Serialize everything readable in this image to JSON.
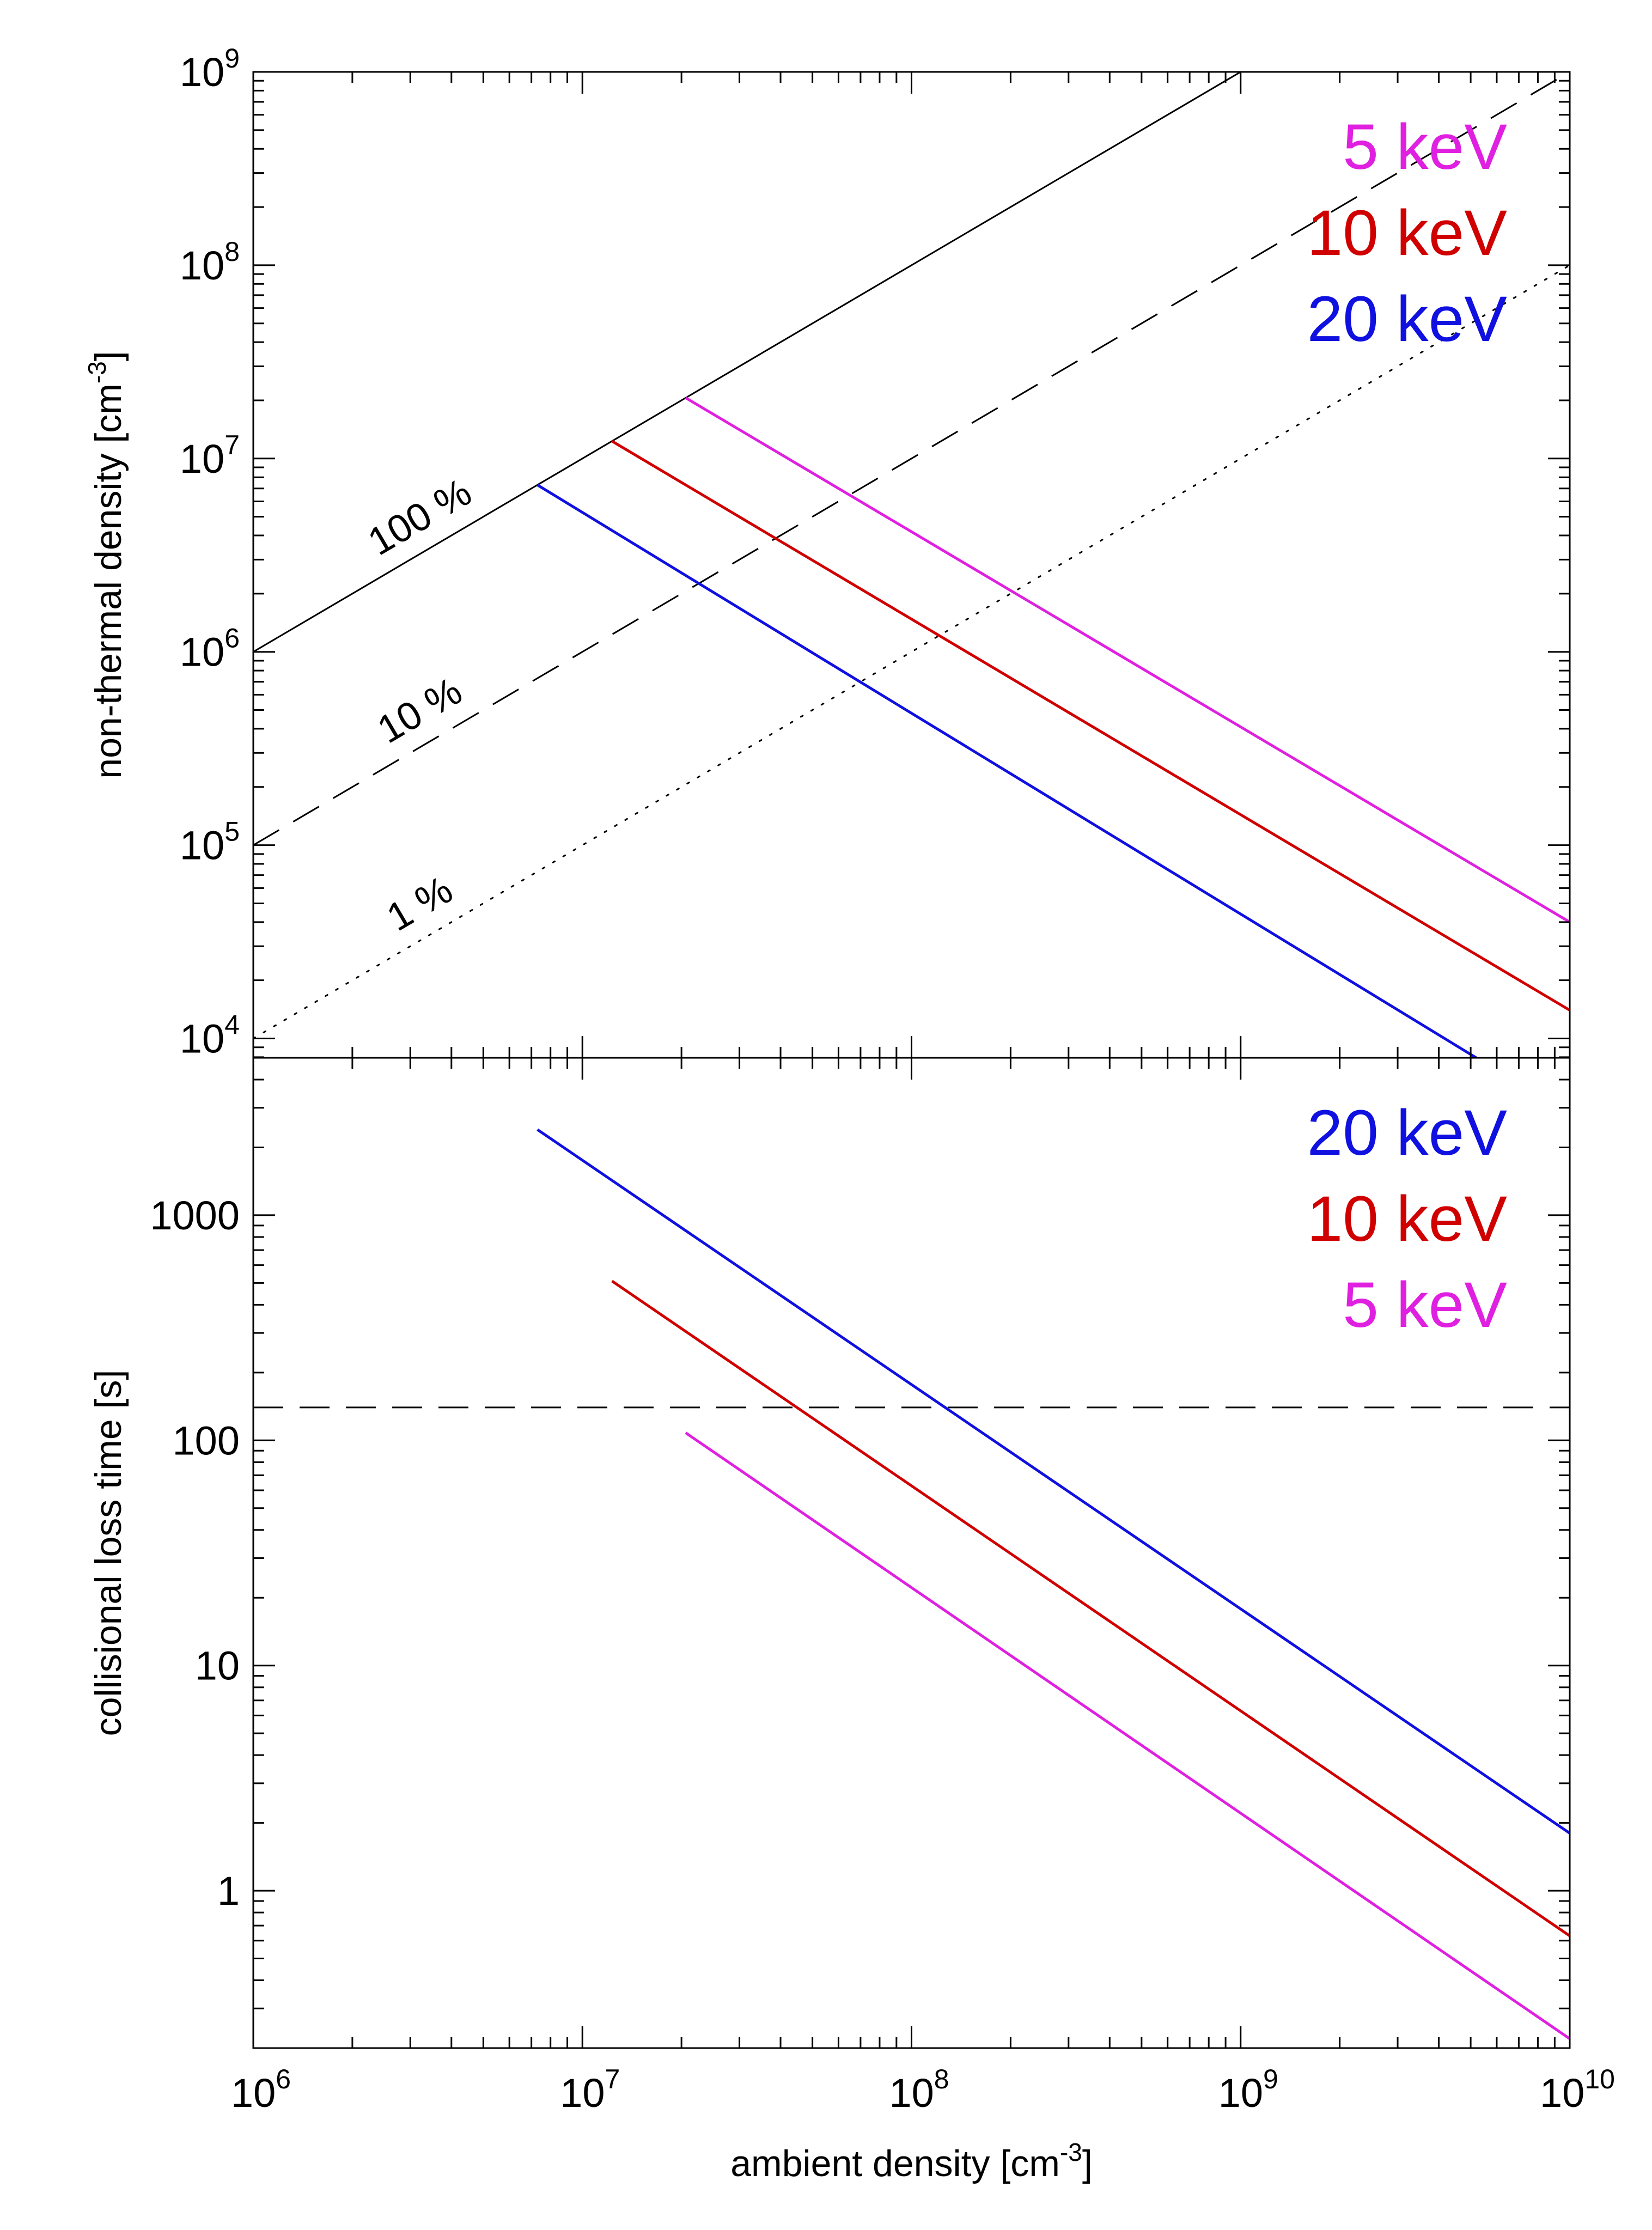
{
  "chart_data": [
    {
      "type": "line",
      "panel": "top",
      "ylabel": "non-thermal density [cm",
      "ylabel_sup": "-3",
      "ylabel_close": "]",
      "xscale": "log",
      "yscale": "log",
      "xlim": [
        1000000,
        10000000000
      ],
      "ylim": [
        7943,
        1000000000
      ],
      "grid": false,
      "yticks": [
        {
          "value": 10000,
          "base": "10",
          "exp": "4"
        },
        {
          "value": 100000,
          "base": "10",
          "exp": "5"
        },
        {
          "value": 1000000,
          "base": "10",
          "exp": "6"
        },
        {
          "value": 10000000,
          "base": "10",
          "exp": "7"
        },
        {
          "value": 100000000,
          "base": "10",
          "exp": "8"
        },
        {
          "value": 1000000000,
          "base": "10",
          "exp": "9"
        }
      ],
      "reference_lines": [
        {
          "label": "100 %",
          "fraction": 1.0,
          "style": "solid",
          "color": "#000000",
          "label_at": 1500000
        },
        {
          "label": "10 %",
          "fraction": 0.1,
          "style": "dashed",
          "color": "#000000",
          "label_at": 1500000
        },
        {
          "label": "1 %",
          "fraction": 0.01,
          "style": "dotted",
          "color": "#000000",
          "label_at": 1500000
        }
      ],
      "series": [
        {
          "name": "5 keV",
          "color": "#e020e0",
          "x": [
            20600000,
            10000000000
          ],
          "y": [
            20600000,
            40000
          ]
        },
        {
          "name": "10 keV",
          "color": "#d00000",
          "x": [
            12300000,
            10000000000
          ],
          "y": [
            12300000,
            14000
          ]
        },
        {
          "name": "20 keV",
          "color": "#1010e0",
          "x": [
            7300000,
            5200000000
          ],
          "y": [
            7300000,
            7943
          ]
        }
      ],
      "legend": {
        "placement": "top-right",
        "items": [
          "5 keV",
          "10 keV",
          "20 keV"
        ]
      }
    },
    {
      "type": "line",
      "panel": "bottom",
      "xlabel": "ambient density [cm",
      "xlabel_sup": "-3",
      "xlabel_close": "]",
      "ylabel": "collisional loss time [s]",
      "xscale": "log",
      "yscale": "log",
      "xlim": [
        1000000,
        10000000000
      ],
      "ylim": [
        0.2,
        5000
      ],
      "grid": false,
      "xticks": [
        {
          "value": 1000000,
          "base": "10",
          "exp": "6"
        },
        {
          "value": 10000000,
          "base": "10",
          "exp": "7"
        },
        {
          "value": 100000000,
          "base": "10",
          "exp": "8"
        },
        {
          "value": 1000000000,
          "base": "10",
          "exp": "9"
        },
        {
          "value": 10000000000,
          "base": "10",
          "exp": "10"
        }
      ],
      "yticks": [
        {
          "value": 1,
          "label": "1"
        },
        {
          "value": 10,
          "label": "10"
        },
        {
          "value": 100,
          "label": "100"
        },
        {
          "value": 1000,
          "label": "1000"
        }
      ],
      "reference_lines": [
        {
          "y": 140,
          "style": "dashed",
          "color": "#000000"
        }
      ],
      "series": [
        {
          "name": "20 keV",
          "color": "#1010e0",
          "x": [
            7300000,
            10000000000
          ],
          "y": [
            2400,
            1.8
          ]
        },
        {
          "name": "10 keV",
          "color": "#d00000",
          "x": [
            12300000,
            10000000000
          ],
          "y": [
            510,
            0.63
          ]
        },
        {
          "name": "5 keV",
          "color": "#e020e0",
          "x": [
            20600000,
            10000000000
          ],
          "y": [
            108,
            0.22
          ]
        }
      ],
      "legend": {
        "placement": "top-right",
        "items": [
          "20 keV",
          "10 keV",
          "5 keV"
        ]
      }
    }
  ]
}
